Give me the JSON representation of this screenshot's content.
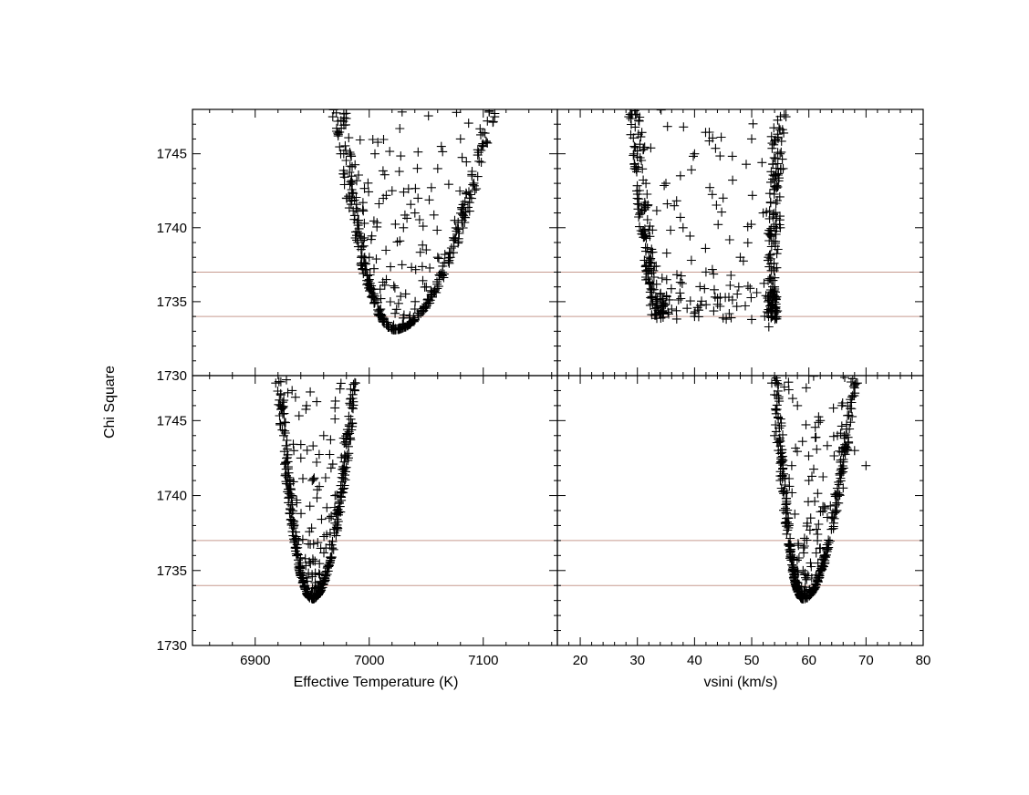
{
  "chart_data": [
    {
      "type": "scatter",
      "panel": "top-left",
      "xlabel": "",
      "ylabel": "",
      "xlim": [
        6845,
        7165
      ],
      "ylim": [
        1730,
        1748
      ],
      "xticks": [
        6900,
        7000,
        7100
      ],
      "yticks": [
        1730,
        1735,
        1740,
        1745
      ],
      "show_xtick_labels": false,
      "show_ytick_labels": true,
      "reference_lines_y": [
        1734,
        1737
      ],
      "fit_shape": "parabola",
      "fit_params": {
        "center_x": 7022,
        "min_y": 1733.1,
        "left_x_at_top": 6968,
        "right_x_at_top": 7112,
        "top_y": 1748
      },
      "series": [
        {
          "points": [
            [
              6968,
              1747.5
            ],
            [
              6975,
              1745
            ],
            [
              6980,
              1742
            ],
            [
              6990,
              1739
            ],
            [
              7000,
              1736.5
            ],
            [
              7010,
              1734.5
            ],
            [
              7022,
              1733.1
            ],
            [
              7030,
              1733.5
            ],
            [
              7040,
              1734.5
            ],
            [
              7050,
              1736
            ],
            [
              7060,
              1738
            ],
            [
              7075,
              1740.5
            ],
            [
              7090,
              1743.5
            ],
            [
              7100,
              1745.5
            ],
            [
              7110,
              1747.5
            ],
            [
              7005,
              1745
            ],
            [
              7020,
              1742.5
            ],
            [
              7040,
              1741
            ],
            [
              7060,
              1744
            ],
            [
              7080,
              1746
            ],
            [
              7030,
              1740
            ],
            [
              7050,
              1738.5
            ],
            [
              7000,
              1738
            ],
            [
              7015,
              1736.5
            ]
          ]
        }
      ]
    },
    {
      "type": "scatter",
      "panel": "top-right",
      "xlabel": "",
      "ylabel": "",
      "xlim": [
        16,
        80
      ],
      "ylim": [
        1730,
        1748
      ],
      "xticks": [
        20,
        30,
        40,
        50,
        60,
        70,
        80
      ],
      "yticks": [
        1730,
        1735,
        1740,
        1745
      ],
      "show_xtick_labels": false,
      "show_ytick_labels": false,
      "reference_lines_y": [
        1734,
        1737
      ],
      "fit_shape": "flat-bottom",
      "fit_params": {
        "left_x_at_top": 28.5,
        "left_x_at_bottom": 34,
        "right_x": 54.5,
        "min_y": 1733.3,
        "top_y": 1748
      },
      "series": [
        {
          "points": [
            [
              28.5,
              1747.5
            ],
            [
              29.5,
              1744
            ],
            [
              30.5,
              1741
            ],
            [
              32,
              1738
            ],
            [
              34,
              1735.5
            ],
            [
              36,
              1734.5
            ],
            [
              40,
              1734
            ],
            [
              45,
              1733.9
            ],
            [
              50,
              1733.8
            ],
            [
              53,
              1733.3
            ],
            [
              54,
              1736
            ],
            [
              55,
              1740
            ],
            [
              55.5,
              1744
            ],
            [
              56,
              1747.5
            ],
            [
              40,
              1745
            ],
            [
              45,
              1742
            ],
            [
              50,
              1746
            ],
            [
              38,
              1740
            ],
            [
              48,
              1738
            ],
            [
              52,
              1741
            ],
            [
              35,
              1743
            ],
            [
              42,
              1737
            ]
          ]
        }
      ]
    },
    {
      "type": "scatter",
      "panel": "bottom-left",
      "xlabel": "Effective Temperature (K)",
      "ylabel": "",
      "xlim": [
        6845,
        7165
      ],
      "ylim": [
        1730,
        1748
      ],
      "xticks": [
        6900,
        7000,
        7100
      ],
      "yticks": [
        1730,
        1735,
        1740,
        1745
      ],
      "show_xtick_labels": true,
      "show_ytick_labels": true,
      "reference_lines_y": [
        1734,
        1737
      ],
      "fit_shape": "parabola",
      "fit_params": {
        "center_x": 6950,
        "min_y": 1733.1,
        "left_x_at_top": 6918,
        "right_x_at_top": 6990,
        "top_y": 1748
      },
      "series": [
        {
          "points": [
            [
              6918,
              1747.5
            ],
            [
              6925,
              1744
            ],
            [
              6932,
              1740
            ],
            [
              6938,
              1737
            ],
            [
              6945,
              1734.5
            ],
            [
              6950,
              1733.1
            ],
            [
              6955,
              1734
            ],
            [
              6962,
              1736.5
            ],
            [
              6970,
              1740
            ],
            [
              6978,
              1743.5
            ],
            [
              6988,
              1747.5
            ],
            [
              6945,
              1746
            ],
            [
              6960,
              1744
            ],
            [
              6950,
              1741
            ],
            [
              6940,
              1742.5
            ],
            [
              6965,
              1738.5
            ]
          ]
        }
      ]
    },
    {
      "type": "scatter",
      "panel": "bottom-right",
      "xlabel": "vsini (km/s)",
      "ylabel": "",
      "xlim": [
        16,
        80
      ],
      "ylim": [
        1730,
        1748
      ],
      "xticks": [
        20,
        30,
        40,
        50,
        60,
        70,
        80
      ],
      "yticks": [
        1730,
        1735,
        1740,
        1745
      ],
      "show_xtick_labels": true,
      "show_ytick_labels": false,
      "reference_lines_y": [
        1734,
        1737
      ],
      "fit_shape": "parabola",
      "fit_params": {
        "center_x": 59,
        "min_y": 1733.1,
        "left_x_at_top": 53.5,
        "right_x_at_top": 68.5,
        "top_y": 1748
      },
      "series": [
        {
          "points": [
            [
              53.5,
              1747.5
            ],
            [
              54,
              1744
            ],
            [
              55,
              1741
            ],
            [
              56.5,
              1738
            ],
            [
              58,
              1735
            ],
            [
              59,
              1733.1
            ],
            [
              60.5,
              1734.5
            ],
            [
              62,
              1736.5
            ],
            [
              64,
              1738.5
            ],
            [
              66,
              1740.5
            ],
            [
              68,
              1743
            ],
            [
              70,
              1742
            ],
            [
              68.5,
              1747.5
            ],
            [
              58,
              1746
            ],
            [
              62,
              1745
            ],
            [
              65,
              1744
            ],
            [
              60,
              1741
            ],
            [
              57,
              1742
            ]
          ]
        }
      ]
    }
  ],
  "shared_ylabel": "Chi Square",
  "colors": {
    "points": "#000000",
    "reference_lines": "#c79a8f",
    "axes": "#000000"
  }
}
